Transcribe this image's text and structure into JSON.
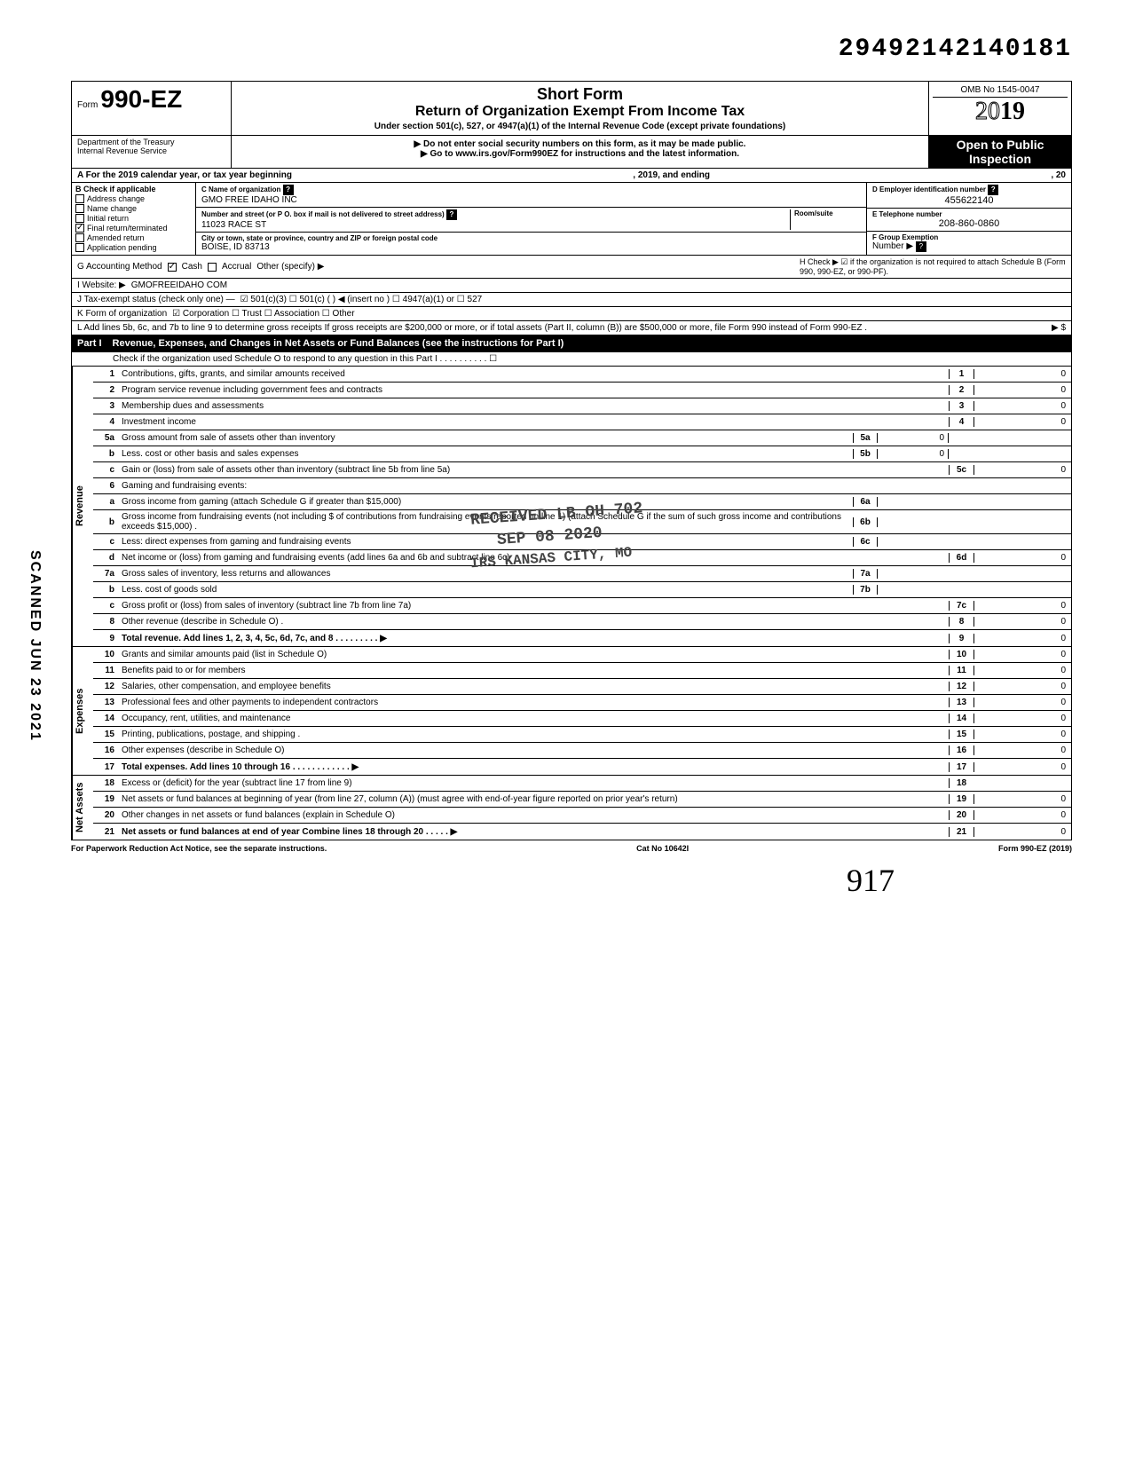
{
  "doc_number": "29492142140181",
  "form": {
    "prefix": "Form",
    "number": "990-EZ",
    "title1": "Short Form",
    "title2": "Return of Organization Exempt From Income Tax",
    "subtitle": "Under section 501(c), 527, or 4947(a)(1) of the Internal Revenue Code (except private foundations)",
    "instr1": "▶ Do not enter social security numbers on this form, as it may be made public.",
    "instr2": "▶ Go to www.irs.gov/Form990EZ for instructions and the latest information.",
    "omb": "OMB No 1545-0047",
    "year": "2019",
    "open": "Open to Public",
    "inspection": "Inspection",
    "dept1": "Department of the Treasury",
    "dept2": "Internal Revenue Service"
  },
  "rowA": {
    "left": "A  For the 2019 calendar year, or tax year beginning",
    "mid": ", 2019, and ending",
    "right": ", 20"
  },
  "B": {
    "label": "B  Check if applicable",
    "items": [
      "Address change",
      "Name change",
      "Initial return",
      "Final return/terminated",
      "Amended return",
      "Application pending"
    ],
    "checked_index": 3
  },
  "C": {
    "name_lbl": "C Name of organization",
    "name": "GMO FREE IDAHO INC",
    "addr_lbl": "Number and street (or P O. box if mail is not delivered to street address)",
    "addr": "11023 RACE ST",
    "room_lbl": "Room/suite",
    "city_lbl": "City or town, state or province, country and ZIP or foreign postal code",
    "city": "BOISE, ID 83713"
  },
  "D": {
    "lbl": "D Employer identification number",
    "val": "455622140"
  },
  "E": {
    "lbl": "E Telephone number",
    "val": "208-860-0860"
  },
  "F": {
    "lbl": "F Group Exemption",
    "lbl2": "Number ▶"
  },
  "G": {
    "label": "G  Accounting Method",
    "cash": "Cash",
    "accrual": "Accrual",
    "other": "Other (specify) ▶"
  },
  "H": {
    "text": "H  Check ▶ ☑ if the organization is not required to attach Schedule B (Form 990, 990-EZ, or 990-PF)."
  },
  "I": {
    "label": "I   Website: ▶",
    "val": "GMOFREEIDAHO COM"
  },
  "J": {
    "label": "J  Tax-exempt status (check only one) —",
    "opts": "☑ 501(c)(3)    ☐ 501(c) (        ) ◀ (insert no ) ☐ 4947(a)(1) or   ☐ 527"
  },
  "K": {
    "label": "K  Form of organization",
    "opts": "☑ Corporation    ☐ Trust    ☐ Association    ☐ Other"
  },
  "L": {
    "text": "L  Add lines 5b, 6c, and 7b to line 9 to determine gross receipts  If gross receipts are $200,000 or more, or if total assets (Part II, column (B)) are $500,000 or more, file Form 990 instead of Form 990-EZ .",
    "arrow": "▶  $"
  },
  "partI": {
    "label": "Part I",
    "title": "Revenue, Expenses, and Changes in Net Assets or Fund Balances (see the instructions for Part I)",
    "check_line": "Check if the organization used Schedule O to respond to any question in this Part I . . . . . . . . . . ☐"
  },
  "sections": {
    "revenue": "Revenue",
    "expenses": "Expenses",
    "netassets": "Net Assets"
  },
  "lines": [
    {
      "n": "1",
      "d": "Contributions, gifts, grants, and similar amounts received",
      "rn": "1",
      "rv": "0"
    },
    {
      "n": "2",
      "d": "Program service revenue including government fees and contracts",
      "rn": "2",
      "rv": "0"
    },
    {
      "n": "3",
      "d": "Membership dues and assessments",
      "rn": "3",
      "rv": "0"
    },
    {
      "n": "4",
      "d": "Investment income",
      "rn": "4",
      "rv": "0"
    },
    {
      "n": "5a",
      "d": "Gross amount from sale of assets other than inventory",
      "mn": "5a",
      "mv": "0",
      "shadeR": true
    },
    {
      "n": "b",
      "d": "Less. cost or other basis and sales expenses",
      "mn": "5b",
      "mv": "0",
      "shadeR": true
    },
    {
      "n": "c",
      "d": "Gain or (loss) from sale of assets other than inventory (subtract line 5b from line 5a)",
      "rn": "5c",
      "rv": "0"
    },
    {
      "n": "6",
      "d": "Gaming and fundraising events:",
      "shadeR": true,
      "noborder": true
    },
    {
      "n": "a",
      "d": "Gross income from gaming (attach Schedule G if greater than $15,000)",
      "mn": "6a",
      "mv": "",
      "shadeR": true
    },
    {
      "n": "b",
      "d": "Gross income from fundraising events (not including  $                   of contributions from fundraising events reported on line 1) (attach Schedule G if the sum of such gross income and contributions exceeds $15,000) .",
      "mn": "6b",
      "mv": "",
      "shadeR": true
    },
    {
      "n": "c",
      "d": "Less: direct expenses from gaming and fundraising events",
      "mn": "6c",
      "mv": "",
      "shadeR": true
    },
    {
      "n": "d",
      "d": "Net income or (loss) from gaming and fundraising events (add lines 6a and 6b and subtract line 6c)",
      "rn": "6d",
      "rv": "0"
    },
    {
      "n": "7a",
      "d": "Gross sales of inventory, less returns and allowances",
      "mn": "7a",
      "mv": "",
      "shadeR": true
    },
    {
      "n": "b",
      "d": "Less. cost of goods sold",
      "mn": "7b",
      "mv": "",
      "shadeR": true
    },
    {
      "n": "c",
      "d": "Gross profit or (loss) from sales of inventory (subtract line 7b from line 7a)",
      "rn": "7c",
      "rv": "0"
    },
    {
      "n": "8",
      "d": "Other revenue (describe in Schedule O) .",
      "rn": "8",
      "rv": "0"
    },
    {
      "n": "9",
      "d": "Total revenue. Add lines 1, 2, 3, 4, 5c, 6d, 7c, and 8     .    .    .    .    .    .    .    .    .    ▶",
      "rn": "9",
      "rv": "0",
      "bold": true
    }
  ],
  "exp_lines": [
    {
      "n": "10",
      "d": "Grants and similar amounts paid (list in Schedule O)",
      "rn": "10",
      "rv": "0"
    },
    {
      "n": "11",
      "d": "Benefits paid to or for members",
      "rn": "11",
      "rv": "0"
    },
    {
      "n": "12",
      "d": "Salaries, other compensation, and employee benefits",
      "rn": "12",
      "rv": "0"
    },
    {
      "n": "13",
      "d": "Professional fees and other payments to independent contractors",
      "rn": "13",
      "rv": "0"
    },
    {
      "n": "14",
      "d": "Occupancy, rent, utilities, and maintenance",
      "rn": "14",
      "rv": "0"
    },
    {
      "n": "15",
      "d": "Printing, publications, postage, and shipping .",
      "rn": "15",
      "rv": "0"
    },
    {
      "n": "16",
      "d": "Other expenses (describe in Schedule O)",
      "rn": "16",
      "rv": "0"
    },
    {
      "n": "17",
      "d": "Total expenses. Add lines 10 through 16     .    .    .    .    .    .    .    .    .    .    .    .    ▶",
      "rn": "17",
      "rv": "0",
      "bold": true
    }
  ],
  "na_lines": [
    {
      "n": "18",
      "d": "Excess or (deficit) for the year (subtract line 17 from line 9)",
      "rn": "18",
      "rv": ""
    },
    {
      "n": "19",
      "d": "Net assets or fund balances at beginning of year (from line 27, column (A)) (must agree with end-of-year figure reported on prior year's return)",
      "rn": "19",
      "rv": "0"
    },
    {
      "n": "20",
      "d": "Other changes in net assets or fund balances (explain in Schedule O)",
      "rn": "20",
      "rv": "0"
    },
    {
      "n": "21",
      "d": "Net assets or fund balances at end of year  Combine lines 18 through 20    .    .    .    .    .    ▶",
      "rn": "21",
      "rv": "0",
      "bold": true
    }
  ],
  "footer": {
    "left": "For Paperwork Reduction Act Notice, see the separate instructions.",
    "mid": "Cat No 10642I",
    "right": "Form 990-EZ (2019)"
  },
  "stamps": {
    "received": "RECEIVED LB OH 702",
    "date": "SEP 08 2020",
    "irs": "IRS KANSAS CITY, MO",
    "scanned": "SCANNED JUN 23 2021",
    "hand": "917"
  }
}
